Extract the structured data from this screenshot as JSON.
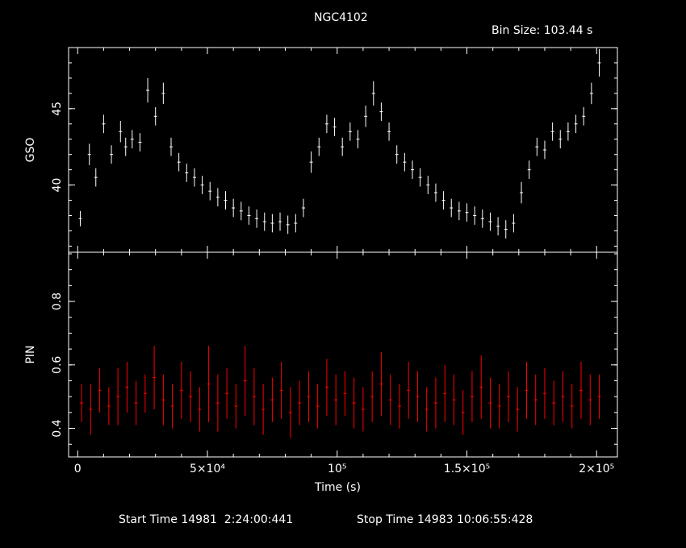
{
  "chart_data": {
    "type": "scatter",
    "title": "NGC4102",
    "subtitle": "Bin Size: 103.44 s",
    "xlabel": "Time (s)",
    "x_tick_labels": [
      "0",
      "5×10⁴",
      "10⁵",
      "1.5×10⁵",
      "2×10⁵"
    ],
    "x_ticks": [
      0,
      50000,
      100000,
      150000,
      200000
    ],
    "xlim": [
      -3500,
      208000
    ],
    "footer": {
      "start": "Start Time 14981  2:24:00:441",
      "stop": "Stop Time 14983 10:06:55:428"
    },
    "panels": [
      {
        "name": "gso",
        "ylabel": "GSO",
        "ylim": [
          35.6,
          49.0
        ],
        "y_ticks": [
          40,
          45
        ],
        "y_tick_labels": [
          "40",
          "45"
        ],
        "color": "#ffffff",
        "series": [
          {
            "name": "",
            "x": [
              1000,
              4500,
              7000,
              10000,
              13000,
              16500,
              18500,
              21000,
              24000,
              27000,
              30000,
              33000,
              36000,
              39000,
              42000,
              45000,
              48000,
              51000,
              54000,
              57000,
              60000,
              63000,
              66000,
              69000,
              72000,
              75000,
              78000,
              81000,
              84000,
              87000,
              90000,
              93000,
              96000,
              99000,
              102000,
              105000,
              108000,
              111000,
              114000,
              117000,
              120000,
              123000,
              126000,
              129000,
              132000,
              135000,
              138000,
              141000,
              144000,
              147000,
              150000,
              153000,
              156000,
              159000,
              162000,
              165000,
              168000,
              171000,
              174000,
              177000,
              180000,
              183000,
              186000,
              189000,
              192000,
              195000,
              198000,
              201000
            ],
            "y": [
              37.8,
              42.0,
              40.5,
              44.0,
              42.0,
              43.5,
              42.5,
              43.0,
              42.8,
              46.2,
              44.5,
              46.0,
              42.5,
              41.5,
              40.8,
              40.5,
              40.0,
              39.6,
              39.2,
              39.0,
              38.5,
              38.3,
              38.0,
              37.8,
              37.6,
              37.5,
              37.6,
              37.4,
              37.5,
              38.5,
              41.5,
              42.5,
              44.0,
              43.8,
              42.5,
              43.5,
              43.0,
              44.5,
              46.0,
              44.8,
              43.5,
              42.0,
              41.5,
              41.0,
              40.5,
              40.0,
              39.5,
              39.0,
              38.5,
              38.3,
              38.2,
              38.0,
              37.8,
              37.6,
              37.3,
              37.1,
              37.5,
              39.5,
              41.0,
              42.5,
              42.3,
              43.5,
              43.0,
              43.5,
              44.0,
              44.5,
              46.0,
              48.0
            ],
            "err": [
              0.5,
              0.7,
              0.6,
              0.6,
              0.6,
              0.7,
              0.6,
              0.6,
              0.6,
              0.8,
              0.6,
              0.7,
              0.6,
              0.6,
              0.6,
              0.6,
              0.6,
              0.6,
              0.6,
              0.6,
              0.6,
              0.6,
              0.6,
              0.6,
              0.6,
              0.6,
              0.6,
              0.6,
              0.6,
              0.6,
              0.7,
              0.6,
              0.6,
              0.6,
              0.6,
              0.6,
              0.6,
              0.7,
              0.8,
              0.6,
              0.6,
              0.6,
              0.6,
              0.6,
              0.6,
              0.6,
              0.6,
              0.6,
              0.6,
              0.6,
              0.6,
              0.6,
              0.6,
              0.6,
              0.6,
              0.6,
              0.6,
              0.7,
              0.6,
              0.6,
              0.6,
              0.6,
              0.6,
              0.6,
              0.6,
              0.6,
              0.7,
              0.9
            ]
          }
        ]
      },
      {
        "name": "pin",
        "ylabel": "PIN",
        "ylim": [
          0.31,
          0.955
        ],
        "y_ticks": [
          0.4,
          0.6,
          0.8
        ],
        "y_tick_labels": [
          "0.4",
          "0.6",
          "0.8"
        ],
        "color": "#ff0000",
        "series": [
          {
            "name": "",
            "x": [
              1500,
              5000,
              8500,
              12000,
              15500,
              19000,
              22500,
              26000,
              29500,
              33000,
              36500,
              40000,
              43500,
              47000,
              50500,
              54000,
              57500,
              61000,
              64500,
              68000,
              71500,
              75000,
              78500,
              82000,
              85500,
              89000,
              92500,
              96000,
              99500,
              103000,
              106500,
              110000,
              113500,
              117000,
              120500,
              124000,
              127500,
              131000,
              134500,
              138000,
              141500,
              145000,
              148500,
              152000,
              155500,
              159000,
              162500,
              166000,
              169500,
              173000,
              176500,
              180000,
              183500,
              187000,
              190500,
              194000,
              197500,
              201000
            ],
            "y": [
              0.48,
              0.46,
              0.52,
              0.47,
              0.5,
              0.53,
              0.48,
              0.51,
              0.56,
              0.49,
              0.47,
              0.52,
              0.5,
              0.46,
              0.54,
              0.48,
              0.51,
              0.47,
              0.55,
              0.5,
              0.46,
              0.49,
              0.52,
              0.45,
              0.48,
              0.5,
              0.47,
              0.53,
              0.49,
              0.51,
              0.48,
              0.46,
              0.5,
              0.54,
              0.49,
              0.47,
              0.52,
              0.5,
              0.46,
              0.48,
              0.51,
              0.49,
              0.45,
              0.5,
              0.53,
              0.48,
              0.47,
              0.5,
              0.46,
              0.52,
              0.49,
              0.51,
              0.48,
              0.5,
              0.47,
              0.52,
              0.49,
              0.5
            ],
            "err": [
              0.06,
              0.08,
              0.07,
              0.06,
              0.09,
              0.08,
              0.07,
              0.06,
              0.1,
              0.08,
              0.07,
              0.09,
              0.08,
              0.07,
              0.12,
              0.09,
              0.08,
              0.07,
              0.11,
              0.09,
              0.08,
              0.07,
              0.09,
              0.08,
              0.07,
              0.08,
              0.07,
              0.09,
              0.08,
              0.07,
              0.08,
              0.07,
              0.08,
              0.1,
              0.08,
              0.07,
              0.09,
              0.08,
              0.07,
              0.08,
              0.09,
              0.08,
              0.07,
              0.08,
              0.1,
              0.08,
              0.07,
              0.08,
              0.07,
              0.09,
              0.08,
              0.08,
              0.07,
              0.08,
              0.07,
              0.09,
              0.08,
              0.07
            ]
          }
        ]
      }
    ]
  }
}
